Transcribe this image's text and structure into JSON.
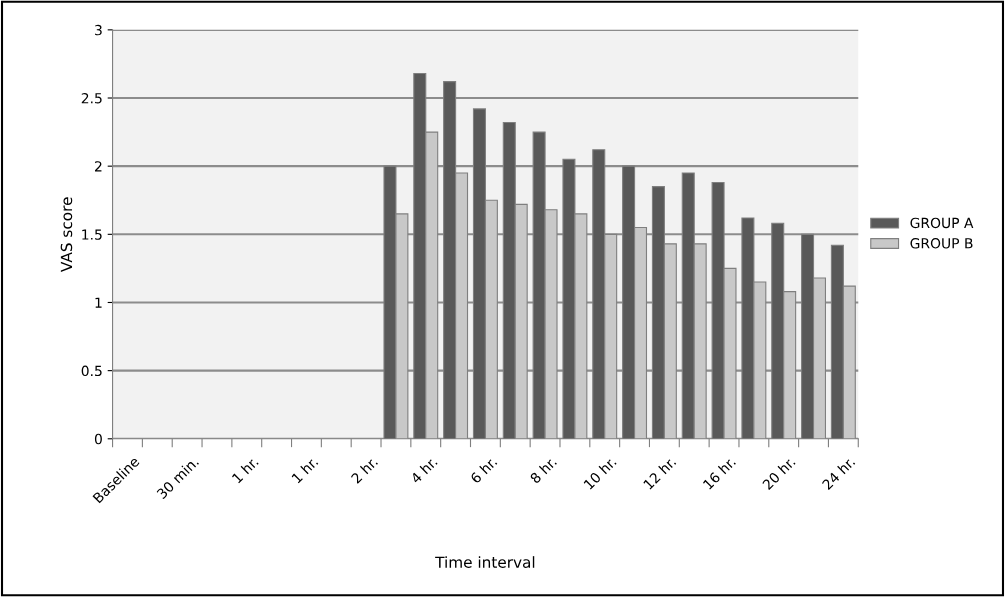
{
  "chart_data": {
    "type": "bar",
    "xlabel": "Time interval",
    "ylabel": "VAS score",
    "categories": [
      "Baseline",
      null,
      "30 min.",
      null,
      "1 hr.",
      null,
      "1 hr.",
      null,
      "2 hr.",
      null,
      "4 hr.",
      null,
      "6 hr.",
      null,
      "8 hr.",
      null,
      "10 hr.",
      null,
      "12 hr.",
      null,
      "16 hr.",
      null,
      "20 hr.",
      null,
      "24 hr."
    ],
    "series": [
      {
        "name": "GROUP A",
        "color": "#595959",
        "values": [
          null,
          null,
          null,
          null,
          null,
          null,
          null,
          null,
          null,
          2.0,
          2.68,
          2.62,
          2.42,
          2.32,
          2.25,
          2.05,
          2.12,
          2.0,
          1.85,
          1.95,
          1.88,
          1.62,
          1.58,
          1.5,
          1.42
        ]
      },
      {
        "name": "GROUP B",
        "color": "#c8c8c8",
        "values": [
          null,
          null,
          null,
          null,
          null,
          null,
          null,
          null,
          null,
          1.65,
          2.25,
          1.95,
          1.75,
          1.72,
          1.68,
          1.65,
          1.5,
          1.55,
          1.43,
          1.43,
          1.25,
          1.15,
          1.08,
          1.18,
          1.12
        ]
      }
    ],
    "ylim": [
      0,
      3
    ],
    "yticks": [
      0,
      0.5,
      1,
      1.5,
      2,
      2.5,
      3
    ],
    "grid": "y",
    "legend": "right"
  }
}
